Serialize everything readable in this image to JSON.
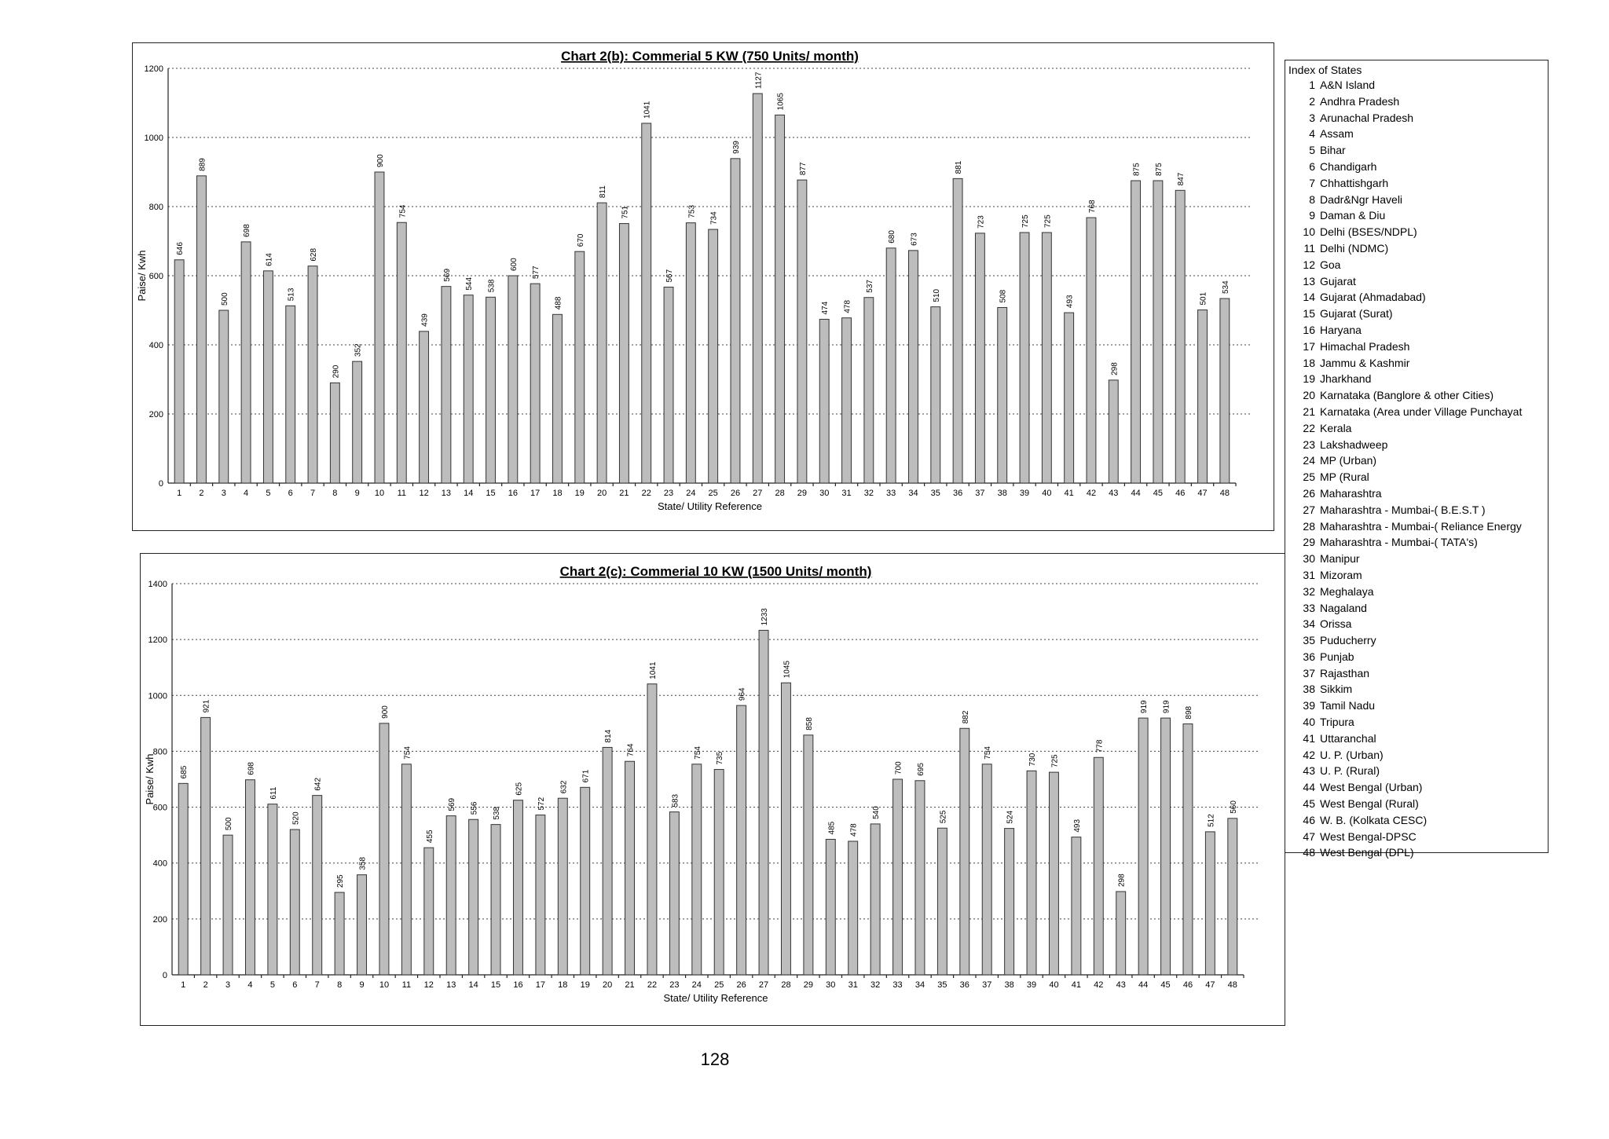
{
  "chart_data": [
    {
      "type": "bar",
      "title": "Chart 2(b): Commerial 5 KW (750 Units/ month)",
      "xlabel": "State/ Utility  Reference",
      "ylabel": "Paise/ Kwh",
      "ylim": [
        0,
        1200
      ],
      "yticks": [
        0,
        200,
        400,
        600,
        800,
        1000,
        1200
      ],
      "grid": true,
      "categories": [
        "1",
        "2",
        "3",
        "4",
        "5",
        "6",
        "7",
        "8",
        "9",
        "10",
        "11",
        "12",
        "13",
        "14",
        "15",
        "16",
        "17",
        "18",
        "19",
        "20",
        "21",
        "22",
        "23",
        "24",
        "25",
        "26",
        "27",
        "28",
        "29",
        "30",
        "31",
        "32",
        "33",
        "34",
        "35",
        "36",
        "37",
        "38",
        "39",
        "40",
        "41",
        "42",
        "43",
        "44",
        "45",
        "46",
        "47",
        "48"
      ],
      "values": [
        646,
        889,
        500,
        698,
        614,
        513,
        628,
        290,
        352,
        900,
        754,
        439,
        569,
        544,
        538,
        600,
        577,
        488,
        670,
        811,
        751,
        1041,
        567,
        753,
        734,
        939,
        1127,
        1065,
        877,
        474,
        478,
        537,
        680,
        673,
        510,
        881,
        723,
        508,
        725,
        725,
        493,
        768,
        298,
        875,
        875,
        847,
        501,
        534
      ]
    },
    {
      "type": "bar",
      "title": "Chart 2(c): Commerial 10 KW (1500 Units/ month)",
      "xlabel": "State/ Utility  Reference",
      "ylabel": "Paise/ Kwh",
      "ylim": [
        0,
        1400
      ],
      "yticks": [
        0,
        200,
        400,
        600,
        800,
        1000,
        1200,
        1400
      ],
      "grid": true,
      "categories": [
        "1",
        "2",
        "3",
        "4",
        "5",
        "6",
        "7",
        "8",
        "9",
        "10",
        "11",
        "12",
        "13",
        "14",
        "15",
        "16",
        "17",
        "18",
        "19",
        "20",
        "21",
        "22",
        "23",
        "24",
        "25",
        "26",
        "27",
        "28",
        "29",
        "30",
        "31",
        "32",
        "33",
        "34",
        "35",
        "36",
        "37",
        "38",
        "39",
        "40",
        "41",
        "42",
        "43",
        "44",
        "45",
        "46",
        "47",
        "48"
      ],
      "values": [
        685,
        921,
        500,
        698,
        611,
        520,
        642,
        295,
        358,
        900,
        754,
        455,
        569,
        556,
        538,
        625,
        572,
        632,
        671,
        814,
        764,
        1041,
        583,
        754,
        735,
        964,
        1233,
        1045,
        858,
        485,
        478,
        540,
        700,
        695,
        525,
        882,
        754,
        524,
        730,
        725,
        493,
        778,
        298,
        919,
        919,
        898,
        512,
        560
      ]
    }
  ],
  "legend": {
    "title": "Index of States",
    "items": [
      {
        "num": "1",
        "name": "A&N Island"
      },
      {
        "num": "2",
        "name": "Andhra Pradesh"
      },
      {
        "num": "3",
        "name": "Arunachal Pradesh"
      },
      {
        "num": "4",
        "name": "Assam"
      },
      {
        "num": "5",
        "name": "Bihar"
      },
      {
        "num": "6",
        "name": "Chandigarh"
      },
      {
        "num": "7",
        "name": "Chhattishgarh"
      },
      {
        "num": "8",
        "name": "Dadr&Ngr Haveli"
      },
      {
        "num": "9",
        "name": "Daman & Diu"
      },
      {
        "num": "10",
        "name": "Delhi (BSES/NDPL)"
      },
      {
        "num": "11",
        "name": "Delhi (NDMC)"
      },
      {
        "num": "12",
        "name": "Goa"
      },
      {
        "num": "13",
        "name": "Gujarat"
      },
      {
        "num": "14",
        "name": "Gujarat (Ahmadabad)"
      },
      {
        "num": "15",
        "name": "Gujarat (Surat)"
      },
      {
        "num": "16",
        "name": "Haryana"
      },
      {
        "num": "17",
        "name": "Himachal Pradesh"
      },
      {
        "num": "18",
        "name": "Jammu & Kashmir"
      },
      {
        "num": "19",
        "name": "Jharkhand"
      },
      {
        "num": "20",
        "name": "Karnataka (Banglore & other Cities)"
      },
      {
        "num": "21",
        "name": "Karnataka (Area under Village Punchayat"
      },
      {
        "num": "22",
        "name": "Kerala"
      },
      {
        "num": "23",
        "name": "Lakshadweep"
      },
      {
        "num": "24",
        "name": "MP (Urban)"
      },
      {
        "num": "25",
        "name": "MP (Rural"
      },
      {
        "num": "26",
        "name": "Maharashtra"
      },
      {
        "num": "27",
        "name": "Maharashtra - Mumbai-( B.E.S.T )"
      },
      {
        "num": "28",
        "name": "Maharashtra - Mumbai-( Reliance Energy"
      },
      {
        "num": "29",
        "name": "Maharashtra - Mumbai-( TATA's)"
      },
      {
        "num": "30",
        "name": "Manipur"
      },
      {
        "num": "31",
        "name": "Mizoram"
      },
      {
        "num": "32",
        "name": "Meghalaya"
      },
      {
        "num": "33",
        "name": "Nagaland"
      },
      {
        "num": "34",
        "name": "Orissa"
      },
      {
        "num": "35",
        "name": "Puducherry"
      },
      {
        "num": "36",
        "name": "Punjab"
      },
      {
        "num": "37",
        "name": "Rajasthan"
      },
      {
        "num": "38",
        "name": "Sikkim"
      },
      {
        "num": "39",
        "name": "Tamil Nadu"
      },
      {
        "num": "40",
        "name": "Tripura"
      },
      {
        "num": "41",
        "name": "Uttaranchal"
      },
      {
        "num": "42",
        "name": "U. P. (Urban)"
      },
      {
        "num": "43",
        "name": "U. P. (Rural)"
      },
      {
        "num": "44",
        "name": "West Bengal (Urban)"
      },
      {
        "num": "45",
        "name": "West Bengal (Rural)"
      },
      {
        "num": "46",
        "name": "W. B. (Kolkata CESC)"
      },
      {
        "num": "47",
        "name": "West Bengal-DPSC"
      },
      {
        "num": "48",
        "name": "West Bengal (DPL)"
      }
    ]
  },
  "page_number": "128"
}
